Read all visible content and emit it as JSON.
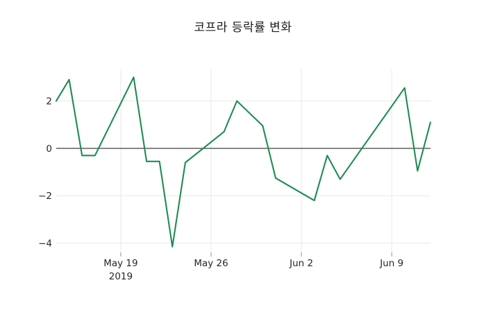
{
  "chart_data": {
    "type": "line",
    "title": "코프라 등락률 변화",
    "grid": true,
    "zero_line": true,
    "legend": "none",
    "series": [
      {
        "name": "코프라 등락률",
        "color": "#1f8c52",
        "points": [
          {
            "date": "May 14",
            "day": 0,
            "value": 2.0
          },
          {
            "date": "May 15",
            "day": 1,
            "value": 2.9
          },
          {
            "date": "May 16",
            "day": 2,
            "value": -0.3
          },
          {
            "date": "May 17",
            "day": 3,
            "value": -0.3
          },
          {
            "date": "May 20",
            "day": 6,
            "value": 3.0
          },
          {
            "date": "May 21",
            "day": 7,
            "value": -0.55
          },
          {
            "date": "May 22",
            "day": 8,
            "value": -0.55
          },
          {
            "date": "May 23",
            "day": 9,
            "value": -4.15
          },
          {
            "date": "May 24",
            "day": 10,
            "value": -0.6
          },
          {
            "date": "May 27",
            "day": 13,
            "value": 0.7
          },
          {
            "date": "May 28",
            "day": 14,
            "value": 2.0
          },
          {
            "date": "May 30",
            "day": 16,
            "value": 0.95
          },
          {
            "date": "May 31",
            "day": 17,
            "value": -1.25
          },
          {
            "date": "Jun 3",
            "day": 20,
            "value": -2.2
          },
          {
            "date": "Jun 4",
            "day": 21,
            "value": -0.3
          },
          {
            "date": "Jun 5",
            "day": 22,
            "value": -1.3
          },
          {
            "date": "Jun 10",
            "day": 27,
            "value": 2.55
          },
          {
            "date": "Jun 11",
            "day": 28,
            "value": -0.95
          },
          {
            "date": "Jun 12",
            "day": 29,
            "value": 1.1
          }
        ]
      }
    ],
    "x_axis": {
      "label": "",
      "range_days": [
        0,
        29
      ],
      "ticks": [
        {
          "day": 5,
          "label": "May 19",
          "sublabel": "2019"
        },
        {
          "day": 12,
          "label": "May 26"
        },
        {
          "day": 19,
          "label": "Jun 2"
        },
        {
          "day": 26,
          "label": "Jun 9"
        }
      ]
    },
    "y_axis": {
      "label": "",
      "range": [
        -4.4,
        3.35
      ],
      "ticks": [
        {
          "value": 2,
          "label": "2"
        },
        {
          "value": 0,
          "label": "0"
        },
        {
          "value": -2,
          "label": "−2"
        },
        {
          "value": -4,
          "label": "−4"
        }
      ]
    },
    "colors": {
      "line": "#1f8c52",
      "grid": "#e9e9e9",
      "zero_line": "#3d3d3d",
      "tick_mark": "#8f8f8f",
      "text": "#262626",
      "background": "#ffffff"
    }
  }
}
